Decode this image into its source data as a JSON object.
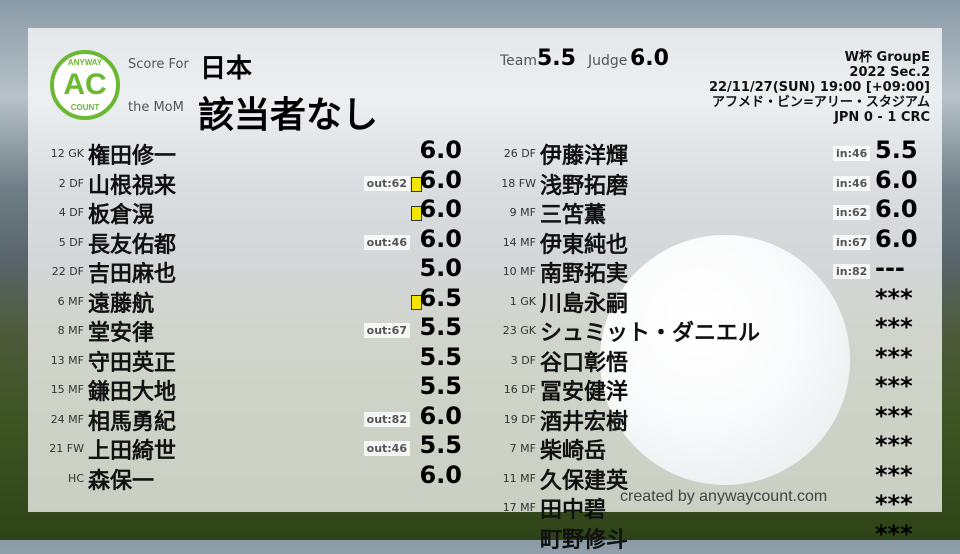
{
  "logo": {
    "top": "ANYWAY",
    "mid": "AC",
    "bottom": "COUNT"
  },
  "header": {
    "score_for_label": "Score For",
    "team": "日本",
    "mom_label": "the MoM",
    "mom": "該当者なし",
    "team_label": "Team",
    "team_score": "5.5",
    "judge_label": "Judge",
    "judge_score": "6.0"
  },
  "match": {
    "competition": "W杯 GroupE",
    "season": "2022 Sec.2",
    "datetime": "22/11/27(SUN) 19:00 [+09:00]",
    "venue": "アフメド・ビン=アリー・スタジアム",
    "result": "JPN 0 - 1 CRC"
  },
  "left": [
    {
      "no": "12 GK",
      "name": "権田修一",
      "sub": "",
      "card": false,
      "score": "6.0"
    },
    {
      "no": "2 DF",
      "name": "山根視来",
      "sub": "out:62",
      "card": true,
      "score": "6.0"
    },
    {
      "no": "4 DF",
      "name": "板倉滉",
      "sub": "",
      "card": true,
      "score": "6.0"
    },
    {
      "no": "5 DF",
      "name": "長友佑都",
      "sub": "out:46",
      "card": false,
      "score": "6.0"
    },
    {
      "no": "22 DF",
      "name": "吉田麻也",
      "sub": "",
      "card": false,
      "score": "5.0"
    },
    {
      "no": "6 MF",
      "name": "遠藤航",
      "sub": "",
      "card": true,
      "score": "6.5"
    },
    {
      "no": "8 MF",
      "name": "堂安律",
      "sub": "out:67",
      "card": false,
      "score": "5.5"
    },
    {
      "no": "13 MF",
      "name": "守田英正",
      "sub": "",
      "card": false,
      "score": "5.5"
    },
    {
      "no": "15 MF",
      "name": "鎌田大地",
      "sub": "",
      "card": false,
      "score": "5.5"
    },
    {
      "no": "24 MF",
      "name": "相馬勇紀",
      "sub": "out:82",
      "card": false,
      "score": "6.0"
    },
    {
      "no": "21 FW",
      "name": "上田綺世",
      "sub": "out:46",
      "card": false,
      "score": "5.5"
    },
    {
      "no": "HC",
      "name": "森保一",
      "sub": "",
      "card": false,
      "score": "6.0"
    }
  ],
  "right": [
    {
      "no": "26 DF",
      "name": "伊藤洋輝",
      "sub": "in:46",
      "score": "5.5"
    },
    {
      "no": "18 FW",
      "name": "浅野拓磨",
      "sub": "in:46",
      "score": "6.0"
    },
    {
      "no": "9 MF",
      "name": "三笘薫",
      "sub": "in:62",
      "score": "6.0"
    },
    {
      "no": "14 MF",
      "name": "伊東純也",
      "sub": "in:67",
      "score": "6.0"
    },
    {
      "no": "10 MF",
      "name": "南野拓実",
      "sub": "in:82",
      "score": "---"
    },
    {
      "no": "1 GK",
      "name": "川島永嗣",
      "sub": "",
      "score": "***"
    },
    {
      "no": "23 GK",
      "name": "シュミット・ダニエル",
      "sub": "",
      "score": "***"
    },
    {
      "no": "3 DF",
      "name": "谷口彰悟",
      "sub": "",
      "score": "***"
    },
    {
      "no": "16 DF",
      "name": "冨安健洋",
      "sub": "",
      "score": "***"
    },
    {
      "no": "19 DF",
      "name": "酒井宏樹",
      "sub": "",
      "score": "***"
    },
    {
      "no": "7 MF",
      "name": "柴崎岳",
      "sub": "",
      "score": "***"
    },
    {
      "no": "11 MF",
      "name": "久保建英",
      "sub": "",
      "score": "***"
    },
    {
      "no": "17 MF",
      "name": "田中碧",
      "sub": "",
      "score": "***"
    },
    {
      "no": "",
      "name": "町野修斗",
      "sub": "",
      "score": "***"
    }
  ],
  "colors": {
    "accent": "#6bb833",
    "card": "#f2e600"
  },
  "credit": "created by anywaycount.com"
}
